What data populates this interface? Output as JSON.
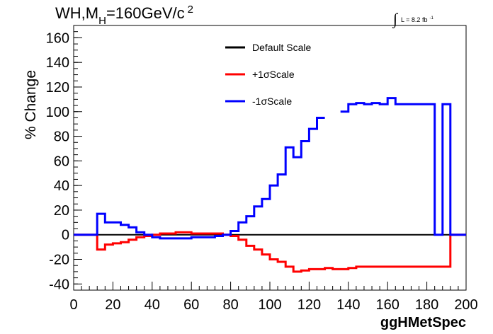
{
  "title": {
    "main": "WH,M",
    "sub": "H",
    "mass": "=160GeV/c",
    "sup": "2"
  },
  "lumi": {
    "integral": "∫",
    "text": "L = 8.2 fb",
    "sup": "-1"
  },
  "chart_data": {
    "type": "line",
    "xlabel": "ggHMetSpec",
    "ylabel": "% Change",
    "xlim": [
      0,
      200
    ],
    "ylim": [
      -45,
      170
    ],
    "x_ticks": [
      0,
      20,
      40,
      60,
      80,
      100,
      120,
      140,
      160,
      180,
      200
    ],
    "y_ticks": [
      -40,
      -20,
      0,
      20,
      40,
      60,
      80,
      100,
      120,
      140,
      160
    ],
    "bin_edges": [
      0,
      4,
      8,
      12,
      16,
      20,
      24,
      28,
      32,
      36,
      40,
      44,
      48,
      52,
      56,
      60,
      64,
      68,
      72,
      76,
      80,
      84,
      88,
      92,
      96,
      100,
      104,
      108,
      112,
      116,
      120,
      124,
      128,
      132,
      136,
      140,
      144,
      148,
      152,
      156,
      160,
      164,
      168,
      172,
      176,
      180,
      184,
      188,
      192,
      196,
      200
    ],
    "legend": {
      "position": "top-center"
    },
    "series": [
      {
        "name": "Default Scale",
        "color": "#000000",
        "values": [
          0,
          0,
          0,
          0,
          0,
          0,
          0,
          0,
          0,
          0,
          0,
          0,
          0,
          0,
          0,
          0,
          0,
          0,
          0,
          0,
          0,
          0,
          0,
          0,
          0,
          0,
          0,
          0,
          0,
          0,
          0,
          0,
          0,
          0,
          0,
          0,
          0,
          0,
          0,
          0,
          0,
          0,
          0,
          0,
          0,
          0,
          0,
          0,
          0,
          0
        ]
      },
      {
        "name": "+1σScale",
        "color": "#ff0000",
        "values": [
          0,
          0,
          0,
          -12,
          -8,
          -7,
          -6,
          -4,
          -2,
          -1,
          0,
          1,
          1,
          2,
          2,
          1,
          1,
          1,
          1,
          0,
          -1,
          -4,
          -9,
          -12,
          -16,
          -20,
          -22,
          -26,
          -30,
          -29,
          -28,
          -28,
          -27,
          -28,
          -28,
          -27,
          -26,
          -26,
          -26,
          -26,
          -26,
          -26,
          -26,
          -26,
          -26,
          -26,
          -26,
          -26,
          0,
          0
        ],
        "null_bins": []
      },
      {
        "name": "-1σScale",
        "color": "#0000ff",
        "values": [
          0,
          0,
          0,
          17,
          10,
          10,
          8,
          6,
          2,
          0,
          -2,
          -3,
          -3,
          -3,
          -3,
          -2,
          -2,
          -2,
          -1,
          0,
          3,
          10,
          15,
          23,
          29,
          40,
          49,
          71,
          63,
          76,
          86,
          95,
          95,
          95,
          100,
          106,
          107,
          106,
          107,
          106,
          111,
          106,
          106,
          106,
          106,
          106,
          0,
          106,
          0,
          0
        ],
        "null_bins": [
          32,
          33
        ]
      }
    ]
  }
}
